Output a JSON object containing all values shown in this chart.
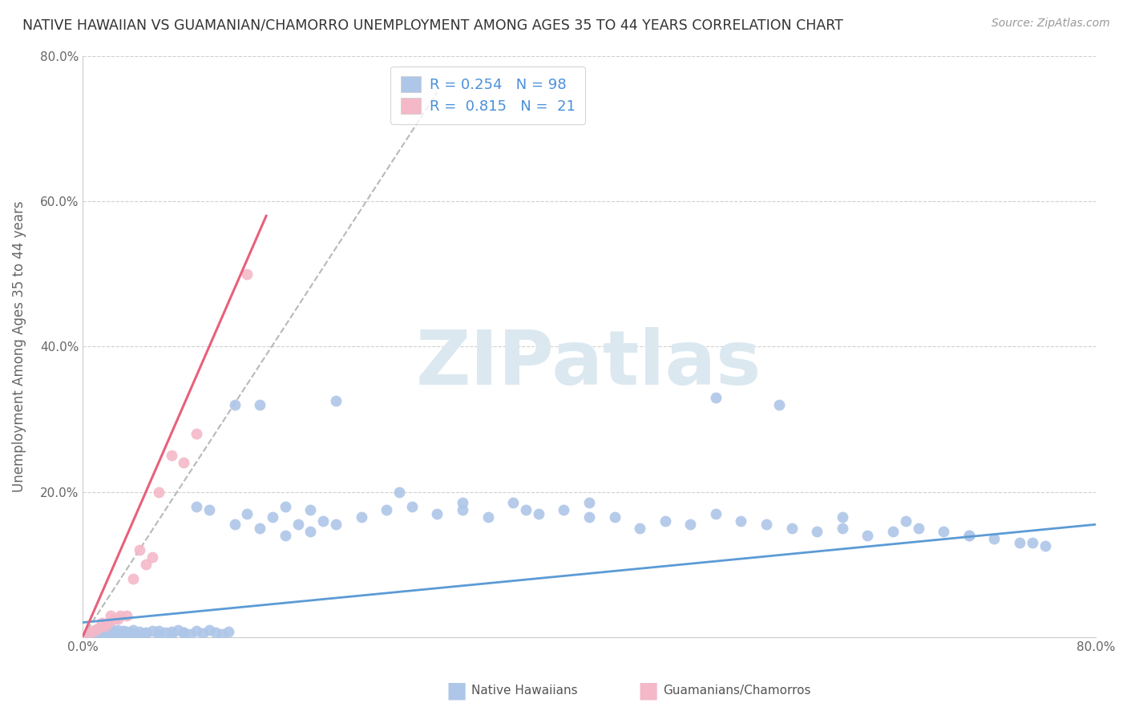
{
  "title": "NATIVE HAWAIIAN VS GUAMANIAN/CHAMORRO UNEMPLOYMENT AMONG AGES 35 TO 44 YEARS CORRELATION CHART",
  "source": "Source: ZipAtlas.com",
  "ylabel": "Unemployment Among Ages 35 to 44 years",
  "xlim": [
    0.0,
    0.8
  ],
  "ylim": [
    0.0,
    0.8
  ],
  "xtick_positions": [
    0.0,
    0.1,
    0.2,
    0.3,
    0.4,
    0.5,
    0.6,
    0.7,
    0.8
  ],
  "xticklabels": [
    "0.0%",
    "",
    "",
    "",
    "",
    "",
    "",
    "",
    "80.0%"
  ],
  "ytick_positions": [
    0.0,
    0.2,
    0.4,
    0.6,
    0.8
  ],
  "yticklabels": [
    "",
    "20.0%",
    "40.0%",
    "60.0%",
    "80.0%"
  ],
  "blue_R": 0.254,
  "blue_N": 98,
  "pink_R": 0.815,
  "pink_N": 21,
  "blue_color": "#aec6e8",
  "pink_color": "#f4b8c8",
  "blue_line_color": "#5b9bd5",
  "pink_line_color": "#e8607a",
  "dashed_line_color": "#b8b8b8",
  "legend_label_blue": "Native Hawaiians",
  "legend_label_pink": "Guamanians/Chamorros",
  "watermark_text": "ZIPatlas",
  "watermark_color": "#dce8f0",
  "background_color": "#ffffff",
  "blue_x": [
    0.005,
    0.01,
    0.012,
    0.015,
    0.018,
    0.02,
    0.022,
    0.025,
    0.028,
    0.03,
    0.032,
    0.035,
    0.038,
    0.04,
    0.042,
    0.045,
    0.048,
    0.05,
    0.055,
    0.06,
    0.065,
    0.07,
    0.075,
    0.08,
    0.085,
    0.09,
    0.095,
    0.1,
    0.105,
    0.11,
    0.115,
    0.12,
    0.13,
    0.14,
    0.15,
    0.16,
    0.17,
    0.18,
    0.19,
    0.2,
    0.22,
    0.24,
    0.26,
    0.28,
    0.3,
    0.32,
    0.34,
    0.36,
    0.38,
    0.4,
    0.42,
    0.44,
    0.46,
    0.48,
    0.5,
    0.52,
    0.54,
    0.56,
    0.58,
    0.6,
    0.62,
    0.64,
    0.66,
    0.68,
    0.7,
    0.72,
    0.74,
    0.76,
    0.01,
    0.015,
    0.02,
    0.025,
    0.03,
    0.035,
    0.04,
    0.05,
    0.06,
    0.07,
    0.08,
    0.09,
    0.1,
    0.12,
    0.14,
    0.16,
    0.18,
    0.2,
    0.25,
    0.3,
    0.35,
    0.4,
    0.5,
    0.55,
    0.6,
    0.65,
    0.7,
    0.75
  ],
  "blue_y": [
    0.005,
    0.01,
    0.002,
    0.008,
    0.015,
    0.003,
    0.012,
    0.007,
    0.01,
    0.005,
    0.008,
    0.003,
    0.006,
    0.01,
    0.004,
    0.007,
    0.003,
    0.005,
    0.008,
    0.003,
    0.006,
    0.004,
    0.01,
    0.006,
    0.004,
    0.008,
    0.005,
    0.01,
    0.006,
    0.004,
    0.007,
    0.155,
    0.17,
    0.15,
    0.165,
    0.14,
    0.155,
    0.145,
    0.16,
    0.155,
    0.165,
    0.175,
    0.18,
    0.17,
    0.175,
    0.165,
    0.185,
    0.17,
    0.175,
    0.165,
    0.165,
    0.15,
    0.16,
    0.155,
    0.17,
    0.16,
    0.155,
    0.15,
    0.145,
    0.15,
    0.14,
    0.145,
    0.15,
    0.145,
    0.14,
    0.135,
    0.13,
    0.125,
    0.003,
    0.005,
    0.004,
    0.006,
    0.005,
    0.007,
    0.004,
    0.006,
    0.008,
    0.007,
    0.006,
    0.18,
    0.175,
    0.32,
    0.32,
    0.18,
    0.175,
    0.325,
    0.2,
    0.185,
    0.175,
    0.185,
    0.33,
    0.32,
    0.165,
    0.16,
    0.14,
    0.13
  ],
  "pink_x": [
    0.005,
    0.008,
    0.01,
    0.012,
    0.015,
    0.018,
    0.02,
    0.022,
    0.025,
    0.028,
    0.03,
    0.035,
    0.04,
    0.045,
    0.05,
    0.055,
    0.06,
    0.07,
    0.08,
    0.09,
    0.13
  ],
  "pink_y": [
    0.005,
    0.008,
    0.01,
    0.012,
    0.02,
    0.015,
    0.02,
    0.03,
    0.025,
    0.025,
    0.03,
    0.03,
    0.08,
    0.12,
    0.1,
    0.11,
    0.2,
    0.25,
    0.24,
    0.28,
    0.5
  ],
  "blue_trend_x": [
    0.0,
    0.8
  ],
  "blue_trend_y": [
    0.02,
    0.155
  ],
  "pink_trend_x": [
    0.0,
    0.145
  ],
  "pink_trend_y": [
    0.0,
    0.58
  ],
  "dashed_trend_x": [
    0.0,
    0.28
  ],
  "dashed_trend_y": [
    0.0,
    0.75
  ]
}
